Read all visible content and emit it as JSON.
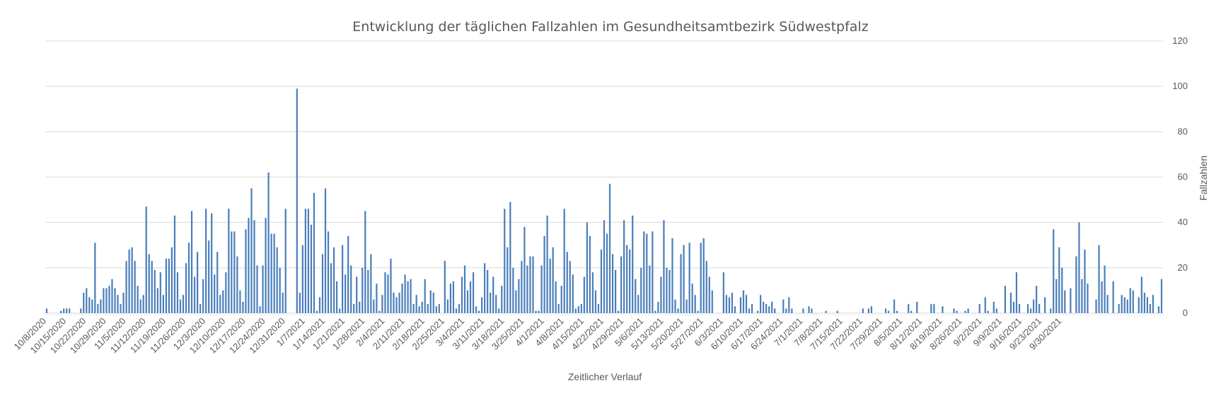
{
  "chart_data": {
    "type": "bar",
    "title": "Entwicklung der täglichen Fallzahlen im Gesundheitsamtbezirk Südwestpfalz",
    "xlabel": "Zeitlicher Verlauf",
    "ylabel": "Fallzahlen",
    "ylim": [
      0,
      120
    ],
    "yticks": [
      0,
      20,
      40,
      60,
      80,
      100,
      120
    ],
    "y_axis_position": "right",
    "grid": true,
    "legend": "none",
    "bar_color": "#4a7ebb",
    "start_date": "2020-10-08",
    "tick_labels": [
      "10/8/2020",
      "10/15/2020",
      "10/22/2020",
      "10/29/2020",
      "11/5/2020",
      "11/12/2020",
      "11/19/2020",
      "11/26/2020",
      "12/3/2020",
      "12/10/2020",
      "12/17/2020",
      "12/24/2020",
      "12/31/2020",
      "1/7/2021",
      "1/14/2021",
      "1/21/2021",
      "1/28/2021",
      "2/4/2021",
      "2/11/2021",
      "2/18/2021",
      "2/25/2021",
      "3/4/2021",
      "3/11/2021",
      "3/18/2021",
      "3/25/2021",
      "4/1/2021",
      "4/8/2021",
      "4/15/2021",
      "4/22/2021",
      "4/29/2021",
      "5/6/2021",
      "5/13/2021",
      "5/20/2021",
      "5/27/2021",
      "6/3/2021",
      "6/10/2021",
      "6/17/2021",
      "6/24/2021",
      "7/1/2021",
      "7/8/2021",
      "7/15/2021",
      "7/22/2021",
      "7/29/2021",
      "8/5/2021",
      "8/12/2021",
      "8/19/2021",
      "8/26/2021",
      "9/2/2021",
      "9/9/2021",
      "9/16/2021",
      "9/23/2021",
      "9/30/2021"
    ],
    "values": [
      2,
      0,
      0,
      0,
      0,
      1,
      2,
      2,
      2,
      0,
      0,
      0,
      2,
      9,
      11,
      7,
      6,
      31,
      4,
      6,
      11,
      11,
      12,
      15,
      11,
      8,
      4,
      9,
      23,
      28,
      29,
      23,
      12,
      6,
      8,
      47,
      26,
      23,
      19,
      11,
      18,
      8,
      24,
      24,
      29,
      43,
      18,
      6,
      8,
      22,
      31,
      45,
      16,
      27,
      4,
      15,
      46,
      32,
      44,
      17,
      27,
      8,
      10,
      18,
      46,
      36,
      36,
      25,
      10,
      5,
      37,
      42,
      55,
      41,
      21,
      3,
      21,
      42,
      62,
      35,
      35,
      29,
      20,
      9,
      46,
      0,
      0,
      0,
      99,
      9,
      30,
      46,
      46,
      39,
      53,
      1,
      7,
      26,
      55,
      36,
      22,
      29,
      14,
      2,
      30,
      17,
      34,
      21,
      4,
      16,
      5,
      20,
      45,
      19,
      26,
      6,
      13,
      1,
      8,
      18,
      17,
      24,
      9,
      7,
      9,
      13,
      17,
      14,
      15,
      4,
      8,
      3,
      5,
      15,
      4,
      10,
      9,
      3,
      4,
      0,
      23,
      6,
      13,
      14,
      2,
      4,
      16,
      21,
      10,
      14,
      18,
      3,
      1,
      7,
      22,
      19,
      9,
      16,
      8,
      2,
      12,
      46,
      29,
      49,
      20,
      10,
      15,
      23,
      38,
      21,
      25,
      25,
      1,
      1,
      21,
      34,
      43,
      24,
      29,
      14,
      4,
      12,
      46,
      27,
      23,
      17,
      2,
      3,
      4,
      16,
      40,
      34,
      18,
      10,
      4,
      28,
      41,
      35,
      57,
      26,
      19,
      1,
      25,
      41,
      30,
      28,
      43,
      15,
      8,
      20,
      36,
      35,
      21,
      36,
      1,
      5,
      16,
      41,
      20,
      19,
      33,
      6,
      2,
      26,
      30,
      6,
      31,
      13,
      8,
      1,
      31,
      33,
      23,
      16,
      10,
      0,
      0,
      0,
      18,
      8,
      7,
      9,
      3,
      0,
      7,
      10,
      8,
      2,
      4,
      0,
      1,
      8,
      5,
      4,
      3,
      5,
      2,
      0,
      0,
      6,
      2,
      7,
      2,
      0,
      0,
      0,
      2,
      0,
      3,
      2,
      0,
      0,
      0,
      0,
      1,
      0,
      0,
      0,
      1,
      0,
      0,
      0,
      0,
      0,
      0,
      0,
      0,
      2,
      0,
      2,
      3,
      0,
      0,
      0,
      0,
      2,
      1,
      0,
      6,
      1,
      0,
      0,
      0,
      4,
      1,
      0,
      5,
      0,
      0,
      0,
      0,
      4,
      4,
      0,
      0,
      3,
      0,
      0,
      0,
      2,
      1,
      0,
      0,
      1,
      2,
      0,
      0,
      0,
      4,
      0,
      7,
      1,
      0,
      5,
      2,
      0,
      0,
      12,
      0,
      9,
      5,
      18,
      4,
      0,
      0,
      4,
      2,
      6,
      12,
      4,
      0,
      7,
      0,
      2,
      37,
      15,
      29,
      20,
      10,
      0,
      11,
      0,
      25,
      40,
      15,
      28,
      13,
      0,
      0,
      6,
      30,
      14,
      21,
      8,
      0,
      14,
      0,
      4,
      8,
      7,
      6,
      11,
      10,
      0,
      7,
      16,
      9,
      7,
      4,
      8,
      0,
      3,
      15
    ]
  }
}
